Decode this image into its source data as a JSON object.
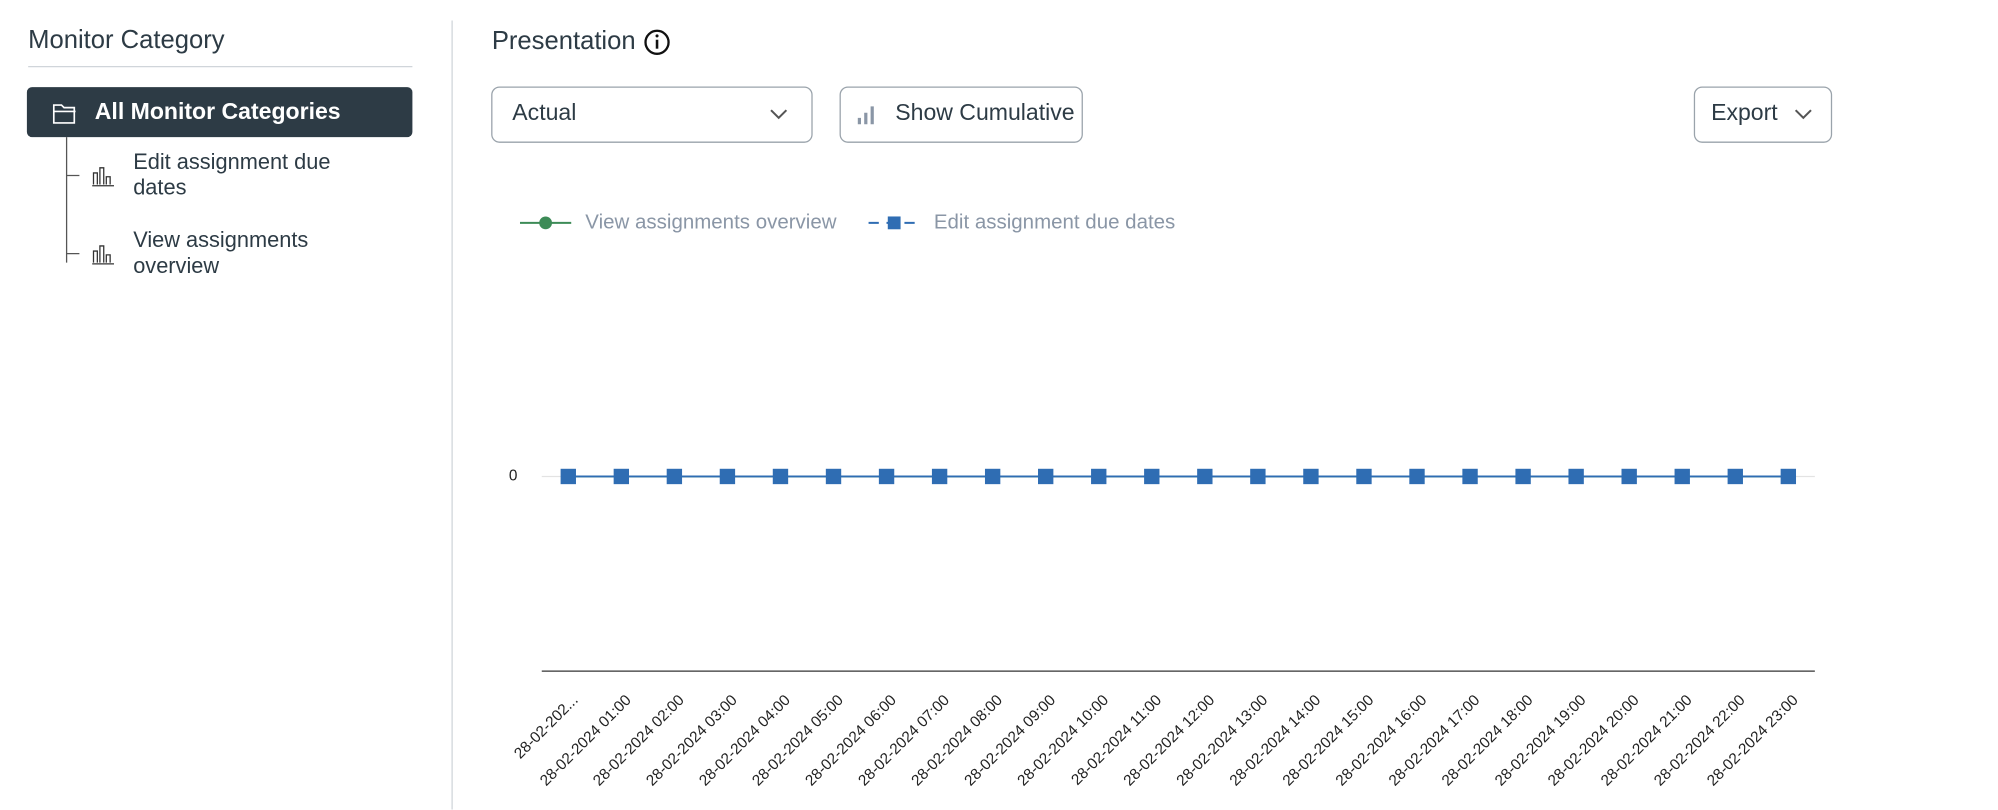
{
  "sidebar": {
    "title": "Monitor Category",
    "items": [
      "All Monitor Categories",
      "Edit assignment due dates",
      "View assignments overview"
    ]
  },
  "header": {
    "title": "Presentation"
  },
  "controls": {
    "select": "Actual",
    "toggle": "Show Cumulative",
    "export": "Export"
  },
  "chart_data": {
    "type": "line",
    "categories": [
      "28-02-202...",
      "28-02-2024 01:00",
      "28-02-2024 02:00",
      "28-02-2024 03:00",
      "28-02-2024 04:00",
      "28-02-2024 05:00",
      "28-02-2024 06:00",
      "28-02-2024 07:00",
      "28-02-2024 08:00",
      "28-02-2024 09:00",
      "28-02-2024 10:00",
      "28-02-2024 11:00",
      "28-02-2024 12:00",
      "28-02-2024 13:00",
      "28-02-2024 14:00",
      "28-02-2024 15:00",
      "28-02-2024 16:00",
      "28-02-2024 17:00",
      "28-02-2024 18:00",
      "28-02-2024 19:00",
      "28-02-2024 20:00",
      "28-02-2024 21:00",
      "28-02-2024 22:00",
      "28-02-2024 23:00"
    ],
    "series": [
      {
        "name": "View assignments overview",
        "color": "#3d8b57",
        "marker": "circle",
        "values": [
          0,
          0,
          0,
          0,
          0,
          0,
          0,
          0,
          0,
          0,
          0,
          0,
          0,
          0,
          0,
          0,
          0,
          0,
          0,
          0,
          0,
          0,
          0,
          0
        ]
      },
      {
        "name": "Edit assignment due dates",
        "color": "#2f6db3",
        "marker": "square",
        "values": [
          0,
          0,
          0,
          0,
          0,
          0,
          0,
          0,
          0,
          0,
          0,
          0,
          0,
          0,
          0,
          0,
          0,
          0,
          0,
          0,
          0,
          0,
          0,
          0
        ]
      }
    ],
    "ylim": [
      -1,
      1
    ],
    "yticks": [
      0
    ],
    "grid": true,
    "legend": "top-left"
  }
}
